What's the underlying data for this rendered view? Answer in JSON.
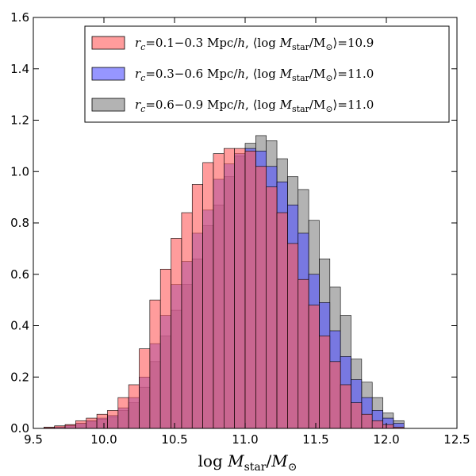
{
  "chart_data": {
    "type": "bar",
    "title": "",
    "xlabel": "log M_star/M_⊙",
    "ylabel": "",
    "xlim": [
      9.5,
      12.5
    ],
    "ylim": [
      0.0,
      1.6
    ],
    "grid": false,
    "legend_position": "top-right",
    "x_ticks": [
      "9.5",
      "10.0",
      "10.5",
      "11.0",
      "11.5",
      "12.0",
      "12.5"
    ],
    "y_ticks": [
      "0.0",
      "0.2",
      "0.4",
      "0.6",
      "0.8",
      "1.0",
      "1.2",
      "1.4",
      "1.6"
    ],
    "bin_edges": [
      9.5,
      9.575,
      9.65,
      9.725,
      9.8,
      9.875,
      9.95,
      10.025,
      10.1,
      10.175,
      10.25,
      10.325,
      10.4,
      10.475,
      10.55,
      10.625,
      10.7,
      10.775,
      10.85,
      10.925,
      11.0,
      11.075,
      11.15,
      11.225,
      11.3,
      11.375,
      11.45,
      11.525,
      11.6,
      11.675,
      11.75,
      11.825,
      11.9,
      11.975,
      12.05,
      12.125
    ],
    "series": [
      {
        "legend": {
          "var": "r",
          "sub": "c",
          "range": "=0.1−0.3 Mpc/",
          "h": "h",
          "mid": ",   ⟨log ",
          "m": "M",
          "msub": "star",
          "sol": "/M",
          "solsub": "⊙",
          "close": "⟩=10.9"
        },
        "color": "#ff5a5a",
        "values": [
          0.0,
          0.005,
          0.01,
          0.015,
          0.03,
          0.04,
          0.055,
          0.07,
          0.12,
          0.17,
          0.31,
          0.5,
          0.62,
          0.74,
          0.84,
          0.95,
          1.035,
          1.07,
          1.09,
          1.09,
          1.08,
          1.02,
          0.94,
          0.84,
          0.72,
          0.58,
          0.48,
          0.36,
          0.26,
          0.17,
          0.1,
          0.055,
          0.03,
          0.015,
          0.005
        ]
      },
      {
        "legend": {
          "var": "r",
          "sub": "c",
          "range": "=0.3−0.6 Mpc/",
          "h": "h",
          "mid": ",   ⟨log ",
          "m": "M",
          "msub": "star",
          "sol": "/M",
          "solsub": "⊙",
          "close": "⟩=11.0"
        },
        "color": "#5050ff",
        "values": [
          0.0,
          0.003,
          0.006,
          0.012,
          0.02,
          0.03,
          0.04,
          0.05,
          0.08,
          0.12,
          0.2,
          0.33,
          0.44,
          0.56,
          0.65,
          0.76,
          0.85,
          0.97,
          1.03,
          1.07,
          1.09,
          1.08,
          1.02,
          0.96,
          0.87,
          0.76,
          0.6,
          0.49,
          0.38,
          0.28,
          0.19,
          0.12,
          0.07,
          0.04,
          0.02
        ]
      },
      {
        "legend": {
          "var": "r",
          "sub": "c",
          "range": "=0.6−0.9 Mpc/",
          "h": "h",
          "mid": ",   ⟨log ",
          "m": "M",
          "msub": "star",
          "sol": "/M",
          "solsub": "⊙",
          "close": "⟩=11.0"
        },
        "color": "#808080",
        "values": [
          0.0,
          0.002,
          0.004,
          0.01,
          0.02,
          0.028,
          0.036,
          0.045,
          0.07,
          0.1,
          0.16,
          0.26,
          0.36,
          0.46,
          0.56,
          0.66,
          0.79,
          0.87,
          0.98,
          1.06,
          1.11,
          1.14,
          1.12,
          1.05,
          0.98,
          0.93,
          0.81,
          0.66,
          0.55,
          0.44,
          0.27,
          0.18,
          0.12,
          0.06,
          0.03
        ]
      }
    ]
  }
}
